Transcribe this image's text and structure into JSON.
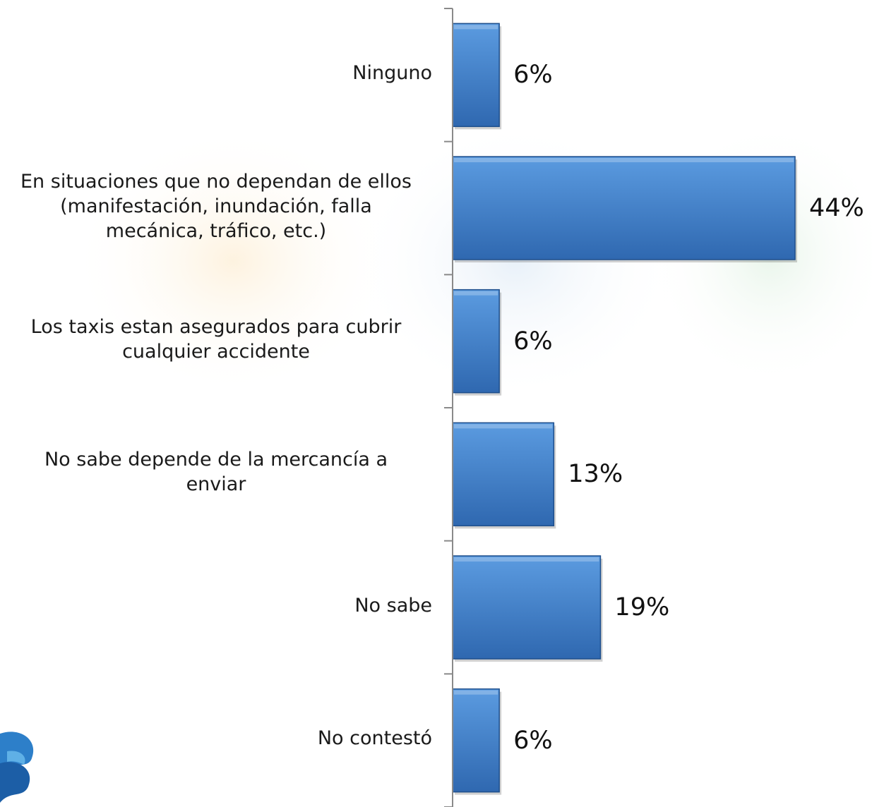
{
  "colors": {
    "bar_top": "#5b9be0",
    "bar_bottom": "#2f68b0",
    "bar_edge": "#1f4f8c",
    "axis": "#8a8a8a",
    "watermark_orange": "#fbe6c4",
    "watermark_blue": "#dbe8f4",
    "watermark_green": "#dcefe0"
  },
  "icons": {
    "logo": "blue-ribbon-logo-icon"
  },
  "chart_data": {
    "type": "bar",
    "orientation": "horizontal",
    "categories": [
      [
        "Ninguno"
      ],
      [
        "En situaciones que no dependan de ellos",
        "(manifestación, inundación, falla",
        "mecánica, tráfico, etc.)"
      ],
      [
        "Los taxis estan asegurados para cubrir",
        "cualquier accidente"
      ],
      [
        "No sabe depende de la mercancía a",
        "enviar"
      ],
      [
        "No sabe"
      ],
      [
        "No contestó"
      ]
    ],
    "values": [
      6,
      44,
      6,
      13,
      19,
      6
    ],
    "value_labels": [
      "6%",
      "44%",
      "6%",
      "13%",
      "19%",
      "6%"
    ],
    "unit": "%",
    "xlim": [
      0,
      44
    ],
    "grid": false,
    "legend": "none"
  }
}
